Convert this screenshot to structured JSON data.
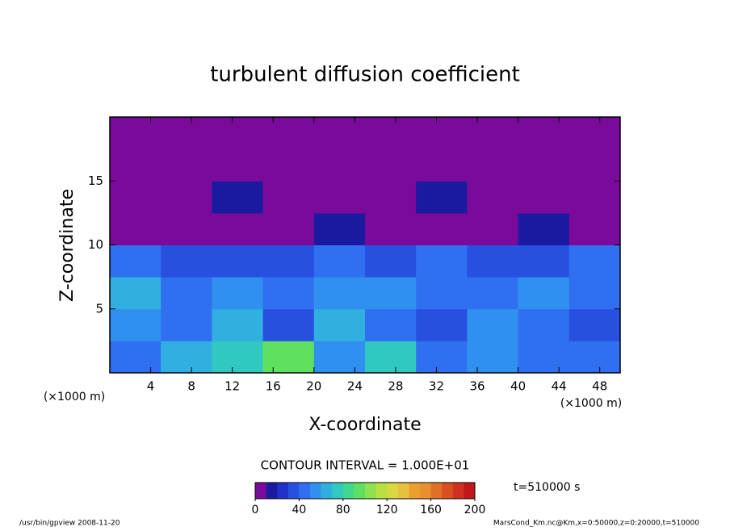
{
  "chart_data": {
    "type": "contour",
    "title": "turbulent diffusion coefficient",
    "xlabel": "X-coordinate",
    "ylabel": "Z-coordinate",
    "x_unit": "(×1000 m)",
    "subtitle": "CONTOUR INTERVAL = 1.000E+01",
    "time_label": "t=510000 s",
    "footer_left": "/usr/bin/gpview  2008-11-20",
    "footer_right": "MarsCond_Km.nc@Km,x=0:50000,z=0:20000,t=510000",
    "xlim": [
      0,
      50
    ],
    "xticks": [
      4,
      8,
      12,
      16,
      20,
      24,
      28,
      32,
      36,
      40,
      44,
      48
    ],
    "ylim": [
      0,
      20
    ],
    "yticks": [
      5,
      10,
      15
    ],
    "z": [
      [
        40,
        60,
        70,
        90,
        50,
        70,
        40,
        50,
        40,
        40
      ],
      [
        50,
        40,
        60,
        30,
        60,
        40,
        30,
        50,
        40,
        30
      ],
      [
        60,
        40,
        50,
        40,
        50,
        50,
        40,
        40,
        50,
        40
      ],
      [
        40,
        30,
        30,
        30,
        40,
        30,
        40,
        30,
        30,
        40
      ],
      [
        0,
        0,
        0,
        0,
        10,
        0,
        0,
        0,
        10,
        0
      ],
      [
        0,
        0,
        10,
        0,
        0,
        0,
        10,
        0,
        0,
        0
      ],
      [
        0,
        0,
        0,
        0,
        0,
        0,
        0,
        0,
        0,
        0
      ],
      [
        0,
        0,
        0,
        0,
        0,
        0,
        0,
        0,
        0,
        0
      ]
    ],
    "clim": [
      0,
      200
    ],
    "cticks": [
      0,
      40,
      80,
      120,
      160,
      200
    ],
    "colors": [
      "#7a0a9a",
      "#1a1aa0",
      "#2030c8",
      "#2850e0",
      "#3070f0",
      "#3090f0",
      "#30b0e0",
      "#30c8c0",
      "#40d890",
      "#60e060",
      "#90e050",
      "#b8e040",
      "#d8d840",
      "#e8c040",
      "#e8a030",
      "#e89030",
      "#e07028",
      "#d85020",
      "#d03020",
      "#c01818"
    ]
  }
}
